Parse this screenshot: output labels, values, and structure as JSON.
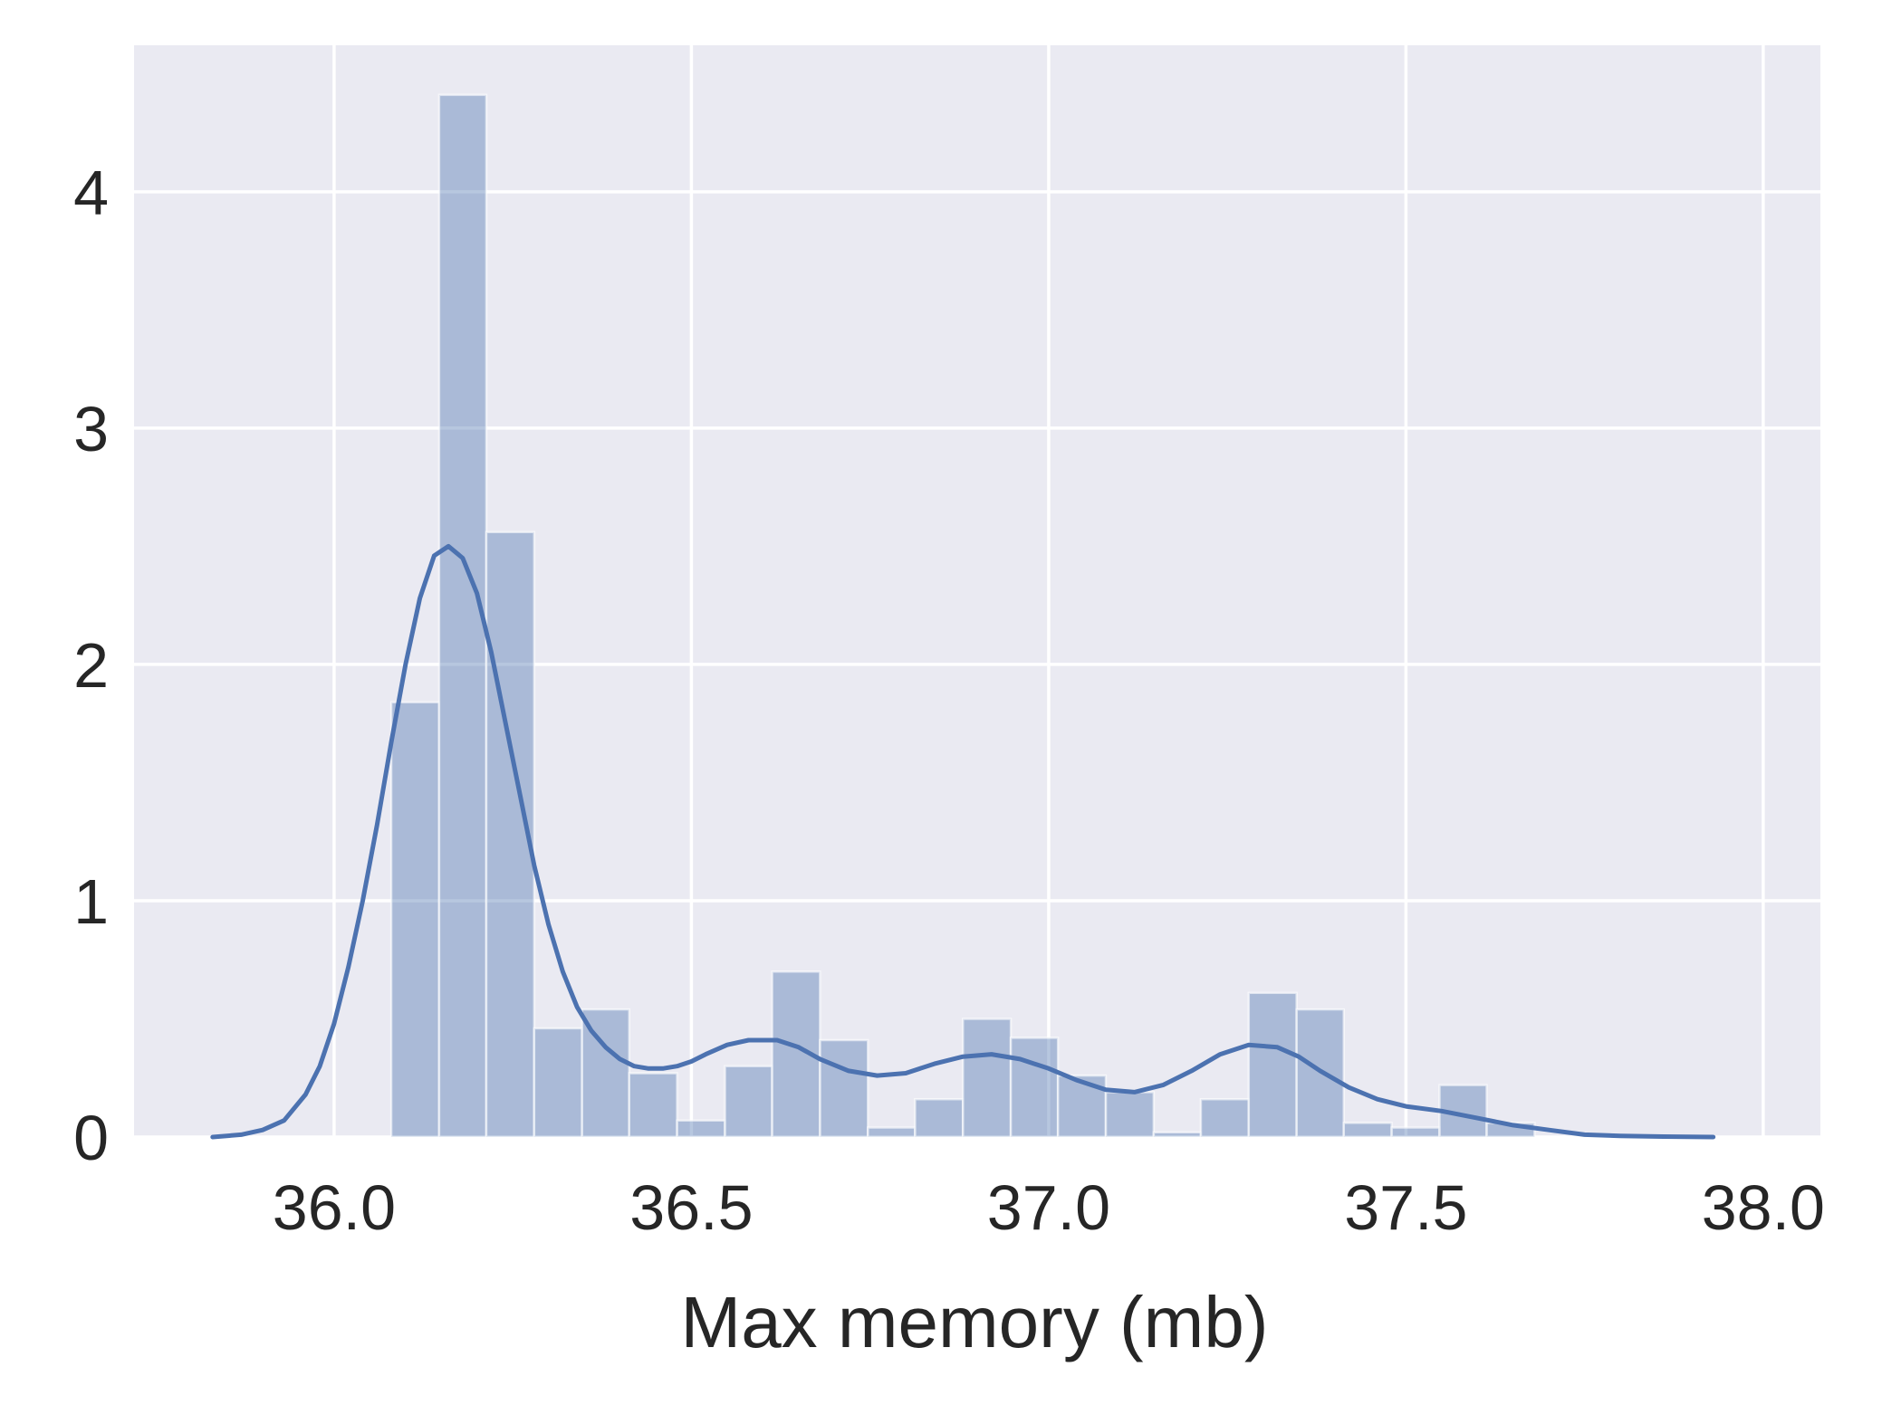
{
  "chart_data": {
    "type": "bar",
    "subtype": "histogram-with-kde",
    "title": "",
    "xlabel": "Max memory (mb)",
    "ylabel": "",
    "xlim": [
      35.72,
      38.08
    ],
    "ylim": [
      0,
      4.62
    ],
    "x_ticks": [
      36.0,
      36.5,
      37.0,
      37.5,
      38.0
    ],
    "x_tick_labels": [
      "36.0",
      "36.5",
      "37.0",
      "37.5",
      "38.0"
    ],
    "y_ticks": [
      0,
      1,
      2,
      3,
      4
    ],
    "y_tick_labels": [
      "0",
      "1",
      "2",
      "3",
      "4"
    ],
    "grid": true,
    "colors": {
      "background": "#eaeaf2",
      "grid": "#ffffff",
      "bars": "#4c72b0",
      "bar_opacity": 0.4,
      "kde_line": "#4c72b0",
      "text": "#262626"
    },
    "bins": [
      {
        "x0": 36.08,
        "x1": 36.147,
        "value": 1.84
      },
      {
        "x0": 36.147,
        "x1": 36.213,
        "value": 4.41
      },
      {
        "x0": 36.213,
        "x1": 36.28,
        "value": 2.56
      },
      {
        "x0": 36.28,
        "x1": 36.347,
        "value": 0.46
      },
      {
        "x0": 36.347,
        "x1": 36.413,
        "value": 0.54
      },
      {
        "x0": 36.413,
        "x1": 36.48,
        "value": 0.27
      },
      {
        "x0": 36.48,
        "x1": 36.547,
        "value": 0.07
      },
      {
        "x0": 36.547,
        "x1": 36.613,
        "value": 0.3
      },
      {
        "x0": 36.613,
        "x1": 36.68,
        "value": 0.7
      },
      {
        "x0": 36.68,
        "x1": 36.747,
        "value": 0.41
      },
      {
        "x0": 36.747,
        "x1": 36.813,
        "value": 0.04
      },
      {
        "x0": 36.813,
        "x1": 36.88,
        "value": 0.16
      },
      {
        "x0": 36.88,
        "x1": 36.947,
        "value": 0.5
      },
      {
        "x0": 36.947,
        "x1": 37.013,
        "value": 0.42
      },
      {
        "x0": 37.013,
        "x1": 37.08,
        "value": 0.26
      },
      {
        "x0": 37.08,
        "x1": 37.147,
        "value": 0.19
      },
      {
        "x0": 37.147,
        "x1": 37.213,
        "value": 0.02
      },
      {
        "x0": 37.213,
        "x1": 37.28,
        "value": 0.16
      },
      {
        "x0": 37.28,
        "x1": 37.347,
        "value": 0.61
      },
      {
        "x0": 37.347,
        "x1": 37.413,
        "value": 0.54
      },
      {
        "x0": 37.413,
        "x1": 37.48,
        "value": 0.06
      },
      {
        "x0": 37.48,
        "x1": 37.547,
        "value": 0.04
      },
      {
        "x0": 37.547,
        "x1": 37.613,
        "value": 0.22
      },
      {
        "x0": 37.613,
        "x1": 37.68,
        "value": 0.06
      }
    ],
    "kde": {
      "x": [
        35.83,
        35.87,
        35.9,
        35.93,
        35.96,
        35.98,
        36.0,
        36.02,
        36.04,
        36.06,
        36.08,
        36.1,
        36.12,
        36.14,
        36.16,
        36.18,
        36.2,
        36.22,
        36.24,
        36.26,
        36.28,
        36.3,
        36.32,
        36.34,
        36.36,
        36.38,
        36.4,
        36.42,
        36.44,
        36.46,
        36.48,
        36.5,
        36.52,
        36.55,
        36.58,
        36.62,
        36.65,
        36.68,
        36.72,
        36.76,
        36.8,
        36.84,
        36.88,
        36.92,
        36.96,
        37.0,
        37.04,
        37.08,
        37.12,
        37.16,
        37.2,
        37.24,
        37.28,
        37.32,
        37.35,
        37.38,
        37.42,
        37.46,
        37.5,
        37.55,
        37.6,
        37.65,
        37.7,
        37.75,
        37.8,
        37.86,
        37.93
      ],
      "y": [
        0.0,
        0.01,
        0.03,
        0.07,
        0.18,
        0.3,
        0.48,
        0.72,
        1.0,
        1.32,
        1.67,
        2.0,
        2.28,
        2.46,
        2.5,
        2.45,
        2.3,
        2.05,
        1.75,
        1.45,
        1.15,
        0.9,
        0.7,
        0.55,
        0.45,
        0.38,
        0.33,
        0.3,
        0.29,
        0.29,
        0.3,
        0.32,
        0.35,
        0.39,
        0.41,
        0.41,
        0.38,
        0.33,
        0.28,
        0.26,
        0.27,
        0.31,
        0.34,
        0.35,
        0.33,
        0.29,
        0.24,
        0.2,
        0.19,
        0.22,
        0.28,
        0.35,
        0.39,
        0.38,
        0.34,
        0.28,
        0.21,
        0.16,
        0.13,
        0.11,
        0.08,
        0.05,
        0.03,
        0.01,
        0.005,
        0.002,
        0.0
      ]
    }
  }
}
